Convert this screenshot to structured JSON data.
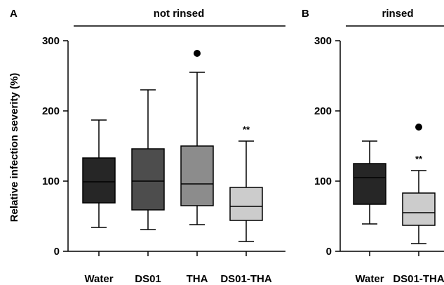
{
  "chart_data": [
    {
      "type": "box",
      "panel_letter": "A",
      "group_title": "not rinsed",
      "ylabel": "Relative infection severity (%)",
      "ylim": [
        0,
        300
      ],
      "yticks": [
        0,
        100,
        200,
        300
      ],
      "categories": [
        "Water",
        "DS01",
        "THA",
        "DS01-THA"
      ],
      "box_colors": [
        "#262626",
        "#4d4d4d",
        "#8c8c8c",
        "#cccccc"
      ],
      "boxes": [
        {
          "whisker_low": 34,
          "q1": 69,
          "median": 99,
          "q3": 133,
          "whisker_high": 187,
          "outliers": [],
          "annotation": ""
        },
        {
          "whisker_low": 31,
          "q1": 59,
          "median": 100,
          "q3": 146,
          "whisker_high": 230,
          "outliers": [],
          "annotation": ""
        },
        {
          "whisker_low": 38,
          "q1": 65,
          "median": 96,
          "q3": 150,
          "whisker_high": 255,
          "outliers": [
            282
          ],
          "annotation": ""
        },
        {
          "whisker_low": 14,
          "q1": 44,
          "median": 64,
          "q3": 91,
          "whisker_high": 157,
          "outliers": [],
          "annotation": "**"
        }
      ]
    },
    {
      "type": "box",
      "panel_letter": "B",
      "group_title": "rinsed",
      "ylabel": "",
      "ylim": [
        0,
        300
      ],
      "yticks": [
        0,
        100,
        200,
        300
      ],
      "categories": [
        "Water",
        "DS01-THA"
      ],
      "box_colors": [
        "#262626",
        "#cccccc"
      ],
      "boxes": [
        {
          "whisker_low": 39,
          "q1": 67,
          "median": 105,
          "q3": 125,
          "whisker_high": 157,
          "outliers": [],
          "annotation": ""
        },
        {
          "whisker_low": 11,
          "q1": 37,
          "median": 55,
          "q3": 83,
          "whisker_high": 115,
          "outliers": [
            177
          ],
          "annotation": "**"
        }
      ]
    }
  ]
}
